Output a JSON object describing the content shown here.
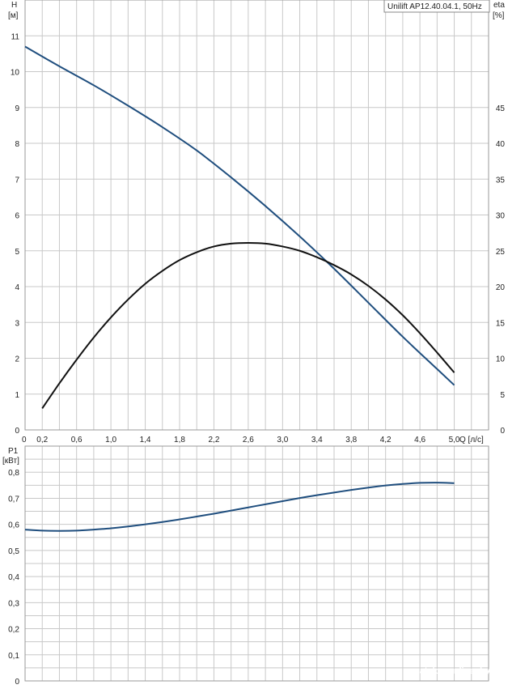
{
  "legend": {
    "label": "Unilift AP12.40.04.1, 50Hz"
  },
  "watermark": "catalog.onliner.by",
  "chart_data": [
    {
      "type": "line",
      "title": "",
      "xlabel": "Q [л/с]",
      "ylabel": "H\n[м]",
      "y2label": "eta\n[%]",
      "xlim": [
        0,
        5.4
      ],
      "ylim": [
        0,
        12
      ],
      "y2lim": [
        0,
        60
      ],
      "xticks": [
        "0",
        "0,2",
        "0,6",
        "1,0",
        "1,4",
        "1,8",
        "2,2",
        "2,6",
        "3,0",
        "3,4",
        "3,8",
        "4,2",
        "4,6",
        "5,0"
      ],
      "xtick_values": [
        0,
        0.2,
        0.6,
        1.0,
        1.4,
        1.8,
        2.2,
        2.6,
        3.0,
        3.4,
        3.8,
        4.2,
        4.6,
        5.0
      ],
      "yticks": [
        "0",
        "1",
        "2",
        "3",
        "4",
        "5",
        "6",
        "7",
        "8",
        "9",
        "10",
        "11"
      ],
      "y2ticks": [
        "0",
        "5",
        "10",
        "15",
        "20",
        "25",
        "30",
        "35",
        "40",
        "45"
      ],
      "grid": true,
      "series": [
        {
          "name": "",
          "axis": "left",
          "color": "#1f4e7e",
          "x": [
            0,
            0.4,
            0.8,
            1.2,
            1.6,
            2.0,
            2.4,
            2.8,
            3.2,
            3.6,
            4.0,
            4.4,
            4.8,
            5.0
          ],
          "y": [
            10.7,
            10.15,
            9.62,
            9.05,
            8.45,
            7.8,
            7.05,
            6.25,
            5.4,
            4.5,
            3.55,
            2.6,
            1.7,
            1.25
          ]
        },
        {
          "name": "",
          "axis": "right",
          "color": "#111111",
          "x": [
            0.2,
            0.4,
            0.6,
            0.8,
            1.0,
            1.2,
            1.4,
            1.6,
            1.8,
            2.0,
            2.2,
            2.4,
            2.6,
            2.8,
            3.0,
            3.2,
            3.4,
            3.6,
            3.8,
            4.0,
            4.2,
            4.4,
            4.6,
            4.8,
            5.0
          ],
          "y": [
            3,
            6.5,
            9.8,
            12.9,
            15.7,
            18.2,
            20.4,
            22.2,
            23.7,
            24.8,
            25.6,
            26,
            26.1,
            26,
            25.6,
            25,
            24.1,
            23,
            21.7,
            20.1,
            18.2,
            16,
            13.5,
            10.8,
            8
          ]
        }
      ]
    },
    {
      "type": "line",
      "title": "",
      "xlabel": "",
      "ylabel": "P1\n[кВт]",
      "xlim": [
        0,
        5.4
      ],
      "ylim": [
        0,
        0.9
      ],
      "yticks": [
        "0",
        "0,1",
        "0,2",
        "0,3",
        "0,4",
        "0,5",
        "0,6",
        "0,7",
        "0,8"
      ],
      "grid": true,
      "series": [
        {
          "name": "",
          "color": "#1f4e7e",
          "x": [
            0,
            0.2,
            0.4,
            0.6,
            0.8,
            1.0,
            1.2,
            1.4,
            1.6,
            1.8,
            2.0,
            2.2,
            2.4,
            2.6,
            2.8,
            3.0,
            3.2,
            3.4,
            3.6,
            3.8,
            4.0,
            4.2,
            4.4,
            4.6,
            4.8,
            5.0
          ],
          "y": [
            0.58,
            0.576,
            0.575,
            0.576,
            0.58,
            0.585,
            0.592,
            0.6,
            0.609,
            0.619,
            0.63,
            0.641,
            0.653,
            0.665,
            0.677,
            0.689,
            0.701,
            0.712,
            0.722,
            0.732,
            0.741,
            0.749,
            0.755,
            0.759,
            0.76,
            0.758
          ]
        }
      ]
    }
  ]
}
